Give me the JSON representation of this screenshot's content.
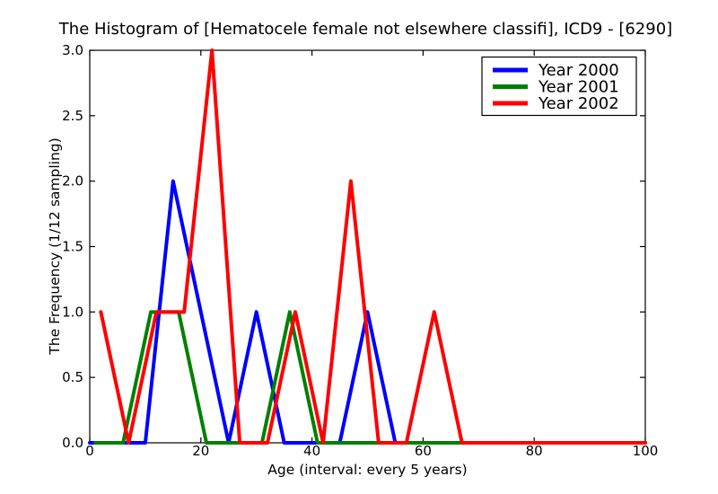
{
  "chart_data": {
    "type": "line",
    "title": "The Histogram of [Hematocele female not elsewhere classifi], ICD9 - [6290]",
    "xlabel": "Age (interval: every 5 years)",
    "ylabel": "The Frequency (1/12 sampling)",
    "xlim": [
      0,
      100
    ],
    "ylim": [
      0.0,
      3.0
    ],
    "xticks": [
      0,
      20,
      40,
      60,
      80,
      100
    ],
    "yticks": [
      0.0,
      0.5,
      1.0,
      1.5,
      2.0,
      2.5,
      3.0
    ],
    "grid": false,
    "legend_position": "upper right",
    "series": [
      {
        "name": "Year 2000",
        "color": "#0000ff",
        "x": [
          0,
          5,
          10,
          15,
          20,
          25,
          30,
          35,
          40,
          45,
          50,
          55,
          60,
          65,
          70,
          75,
          80,
          85,
          90,
          95,
          100
        ],
        "y": [
          0,
          0,
          0,
          2,
          1,
          0,
          1,
          0,
          0,
          0,
          1,
          0,
          0,
          0,
          0,
          0,
          0,
          0,
          0,
          0,
          0
        ]
      },
      {
        "name": "Year 2001",
        "color": "#008000",
        "x": [
          1,
          6,
          11,
          16,
          21,
          26,
          31,
          36,
          41,
          46,
          51,
          56,
          61,
          66,
          71,
          76,
          81,
          86,
          91,
          96,
          100
        ],
        "y": [
          0,
          0,
          1,
          1,
          0,
          0,
          0,
          1,
          0,
          0,
          0,
          0,
          0,
          0,
          0,
          0,
          0,
          0,
          0,
          0,
          0
        ]
      },
      {
        "name": "Year 2002",
        "color": "#ff0000",
        "x": [
          2,
          7,
          12,
          17,
          22,
          27,
          32,
          37,
          42,
          47,
          52,
          57,
          62,
          67,
          72,
          77,
          82,
          87,
          92,
          97,
          100
        ],
        "y": [
          1,
          0,
          1,
          1,
          3,
          0,
          0,
          1,
          0,
          2,
          0,
          0,
          1,
          0,
          0,
          0,
          0,
          0,
          0,
          0,
          0
        ]
      }
    ]
  }
}
